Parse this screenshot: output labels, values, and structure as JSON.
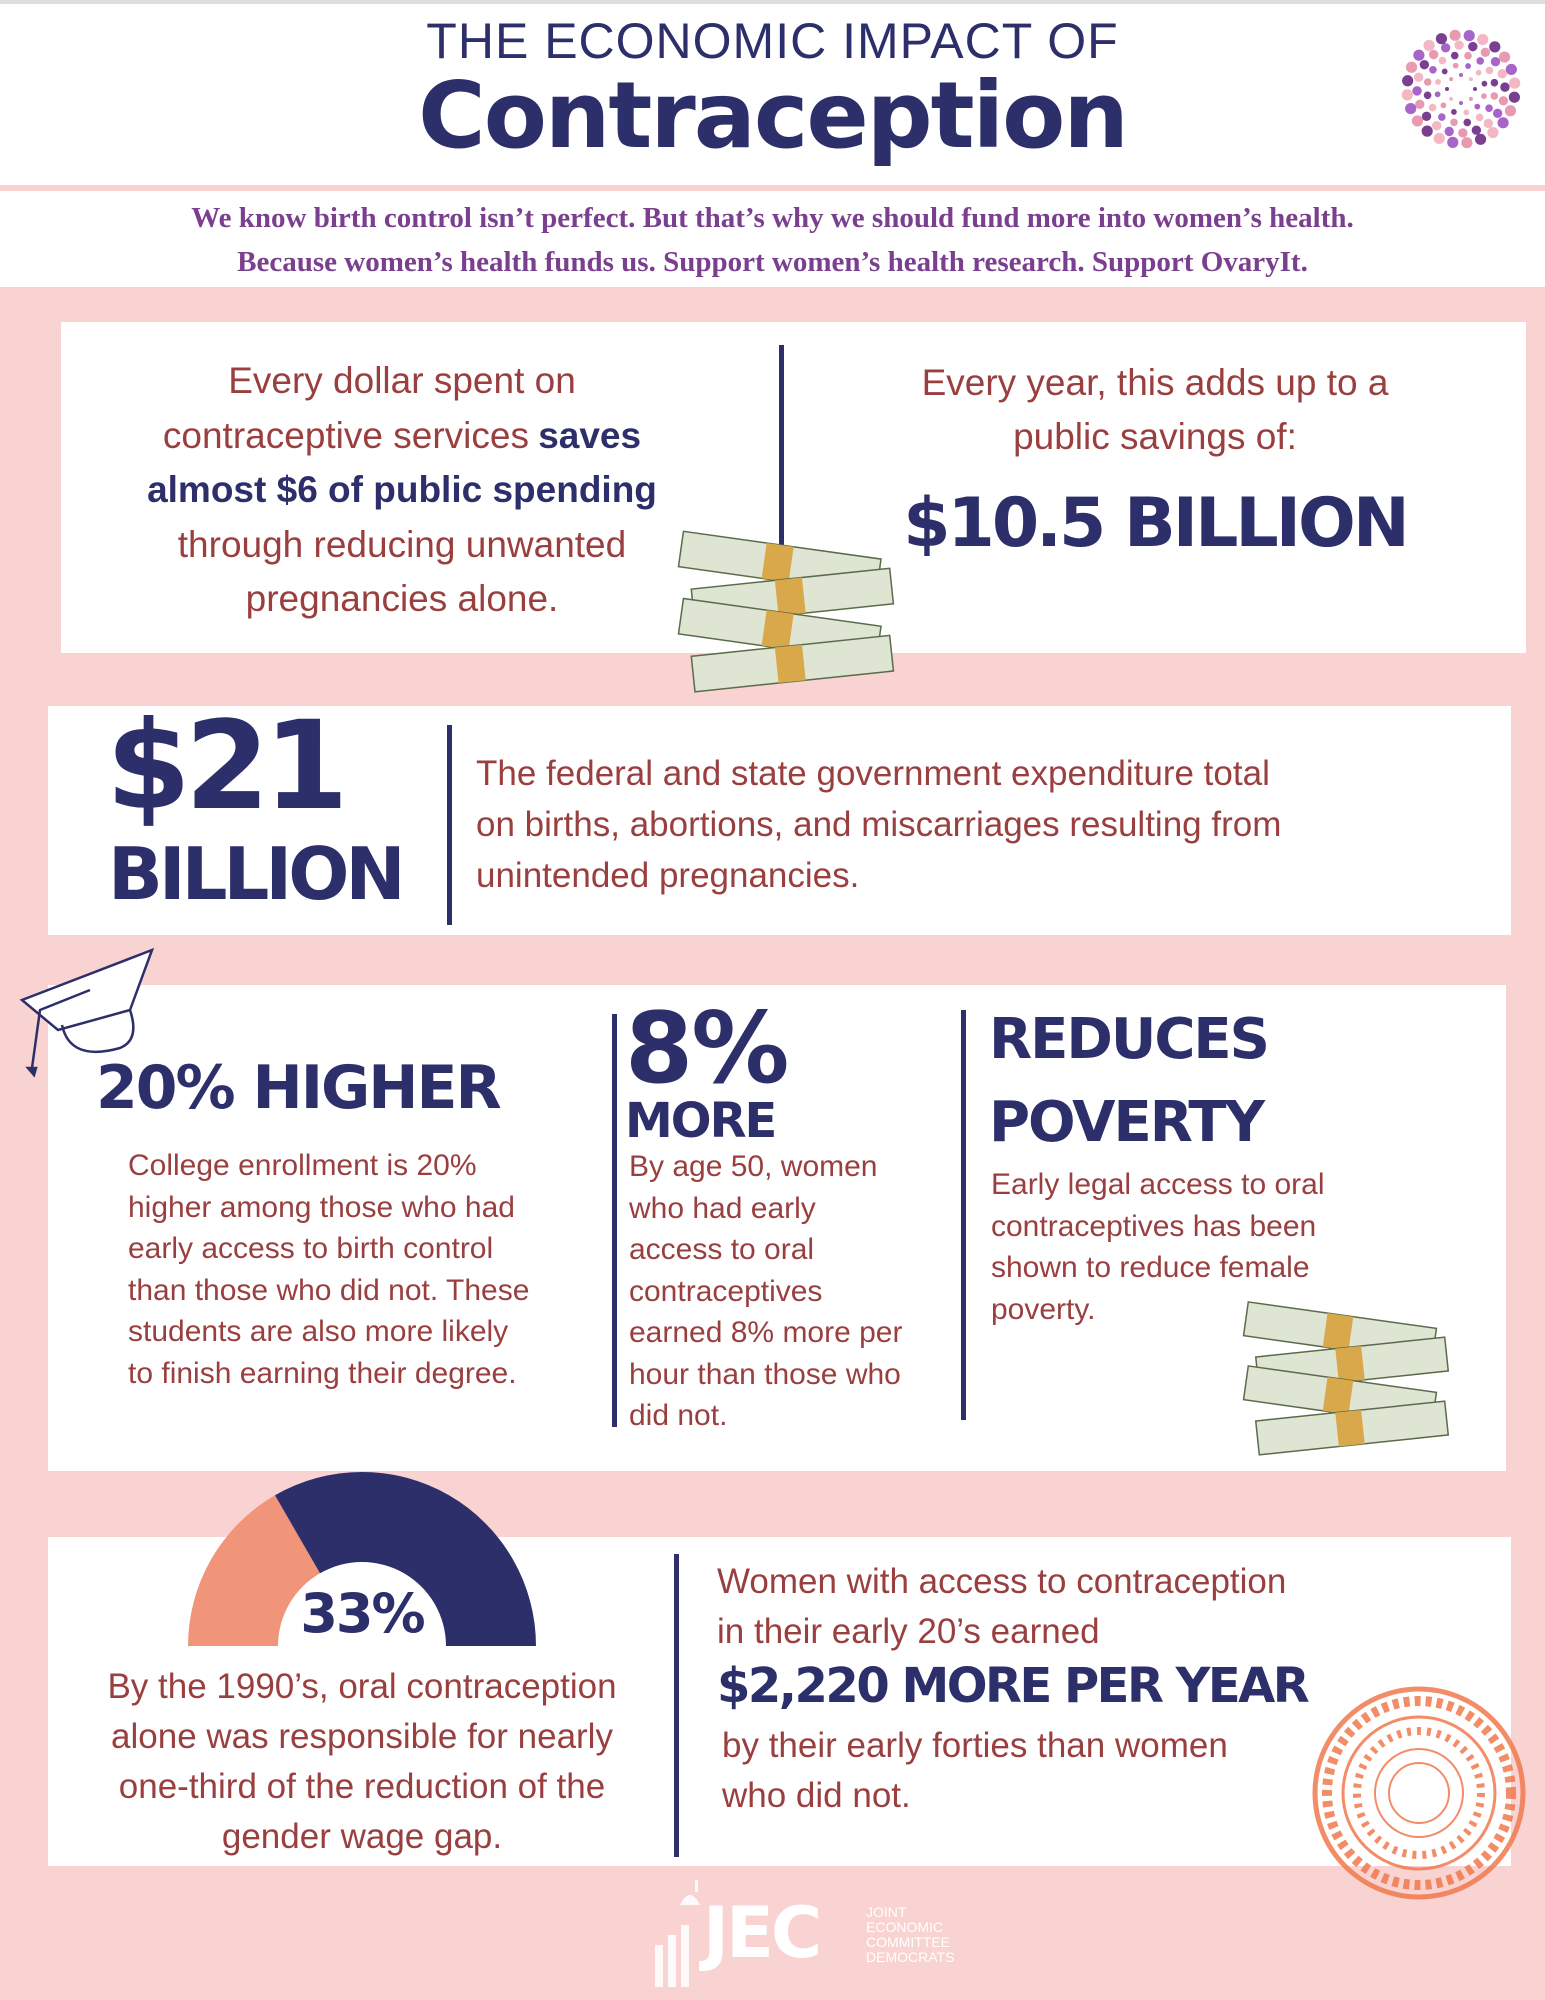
{
  "header": {
    "kicker": "THE ECONOMIC IMPACT OF",
    "title": "Contraception"
  },
  "tagline": [
    "We know birth control isn’t perfect. But that’s why we should fund more into women’s health.",
    "Because women’s health funds us. Support women’s health research. Support OvaryIt."
  ],
  "savings": {
    "left": [
      {
        "text": "Every dollar spent on"
      },
      {
        "text": "contraceptive services",
        "strong": "saves"
      },
      {
        "strong": "almost $6 of public spending"
      },
      {
        "text": "through reducing unwanted"
      },
      {
        "text": "pregnancies alone."
      }
    ],
    "right": [
      "Every year, this adds up to a",
      "public savings of:"
    ],
    "amount": "$10.5 BILLION"
  },
  "expenditure": {
    "amount": "$21",
    "unit": "BILLION",
    "lines": [
      "The federal and state government expenditure total",
      "on births, abortions, and miscarriages resulting from",
      "unintended pregnancies."
    ]
  },
  "facts": [
    {
      "headline": [
        "20% HIGHER"
      ],
      "lines": [
        "College enrollment is 20%",
        "higher among those who had",
        "early access to birth control",
        "than those who did not. These",
        "students are also more likely",
        "to finish earning their degree."
      ]
    },
    {
      "headline": [
        "8%",
        "MORE"
      ],
      "lines": [
        "By age 50, women",
        "who had early",
        "access to oral",
        "contraceptives",
        "earned 8% more per",
        "hour than those who",
        "did not."
      ]
    },
    {
      "headline": [
        "REDUCES",
        "POVERTY"
      ],
      "lines": [
        "Early legal access to oral",
        "contraceptives has been",
        "shown to reduce female",
        "poverty."
      ]
    }
  ],
  "wage_gap": {
    "figure": "33%",
    "lines": [
      "By the 1990’s, oral contraception",
      "alone was responsible for nearly",
      "one-third of the reduction of the",
      "gender wage gap."
    ]
  },
  "earnings": {
    "lead": [
      "Women with access to contraception",
      "in their early 20’s earned"
    ],
    "amount": "$2,220 MORE PER YEAR",
    "tail": [
      "by their early forties than women",
      "who did not."
    ]
  },
  "footer": {
    "logo": "JEC",
    "org": [
      "JOINT",
      "ECONOMIC",
      "COMMITTEE",
      "DEMOCRATS"
    ]
  }
}
